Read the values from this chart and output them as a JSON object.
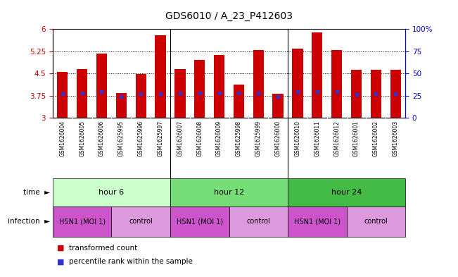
{
  "title": "GDS6010 / A_23_P412603",
  "samples": [
    "GSM1626004",
    "GSM1626005",
    "GSM1626006",
    "GSM1625995",
    "GSM1625996",
    "GSM1625997",
    "GSM1626007",
    "GSM1626008",
    "GSM1626009",
    "GSM1625998",
    "GSM1625999",
    "GSM1626000",
    "GSM1626010",
    "GSM1626011",
    "GSM1626012",
    "GSM1626001",
    "GSM1626002",
    "GSM1626003"
  ],
  "bar_values": [
    4.55,
    4.65,
    5.18,
    3.83,
    4.47,
    5.78,
    4.65,
    4.95,
    5.12,
    4.12,
    5.28,
    3.82,
    5.35,
    5.88,
    5.28,
    4.63,
    4.62,
    4.62
  ],
  "blue_dot_values": [
    3.82,
    3.83,
    3.88,
    3.72,
    3.82,
    3.82,
    3.83,
    3.83,
    3.83,
    3.83,
    3.83,
    3.72,
    3.88,
    3.88,
    3.88,
    3.78,
    3.82,
    3.82
  ],
  "ymin": 3.0,
  "ymax": 6.0,
  "yticks": [
    3.0,
    3.75,
    4.5,
    5.25,
    6.0
  ],
  "ytick_labels": [
    "3",
    "3.75",
    "4.5",
    "5.25",
    "6"
  ],
  "right_yticks": [
    0,
    25,
    50,
    75,
    100
  ],
  "right_ytick_labels": [
    "0",
    "25",
    "50",
    "75",
    "100%"
  ],
  "bar_color": "#cc0000",
  "blue_dot_color": "#3333cc",
  "time_groups": [
    {
      "label": "hour 6",
      "start": 0,
      "end": 6,
      "color": "#ccffcc"
    },
    {
      "label": "hour 12",
      "start": 6,
      "end": 12,
      "color": "#77dd77"
    },
    {
      "label": "hour 24",
      "start": 12,
      "end": 18,
      "color": "#44bb44"
    }
  ],
  "infection_groups": [
    {
      "label": "H5N1 (MOI 1)",
      "start": 0,
      "end": 3,
      "color": "#cc55cc"
    },
    {
      "label": "control",
      "start": 3,
      "end": 6,
      "color": "#dd99dd"
    },
    {
      "label": "H5N1 (MOI 1)",
      "start": 6,
      "end": 9,
      "color": "#cc55cc"
    },
    {
      "label": "control",
      "start": 9,
      "end": 12,
      "color": "#dd99dd"
    },
    {
      "label": "H5N1 (MOI 1)",
      "start": 12,
      "end": 15,
      "color": "#cc55cc"
    },
    {
      "label": "control",
      "start": 15,
      "end": 18,
      "color": "#dd99dd"
    }
  ],
  "bg_color": "#ffffff",
  "tick_color_left": "#cc0000",
  "tick_color_right": "#0000cc",
  "sample_bg_color": "#dddddd",
  "grid_dotted_color": "#555555"
}
